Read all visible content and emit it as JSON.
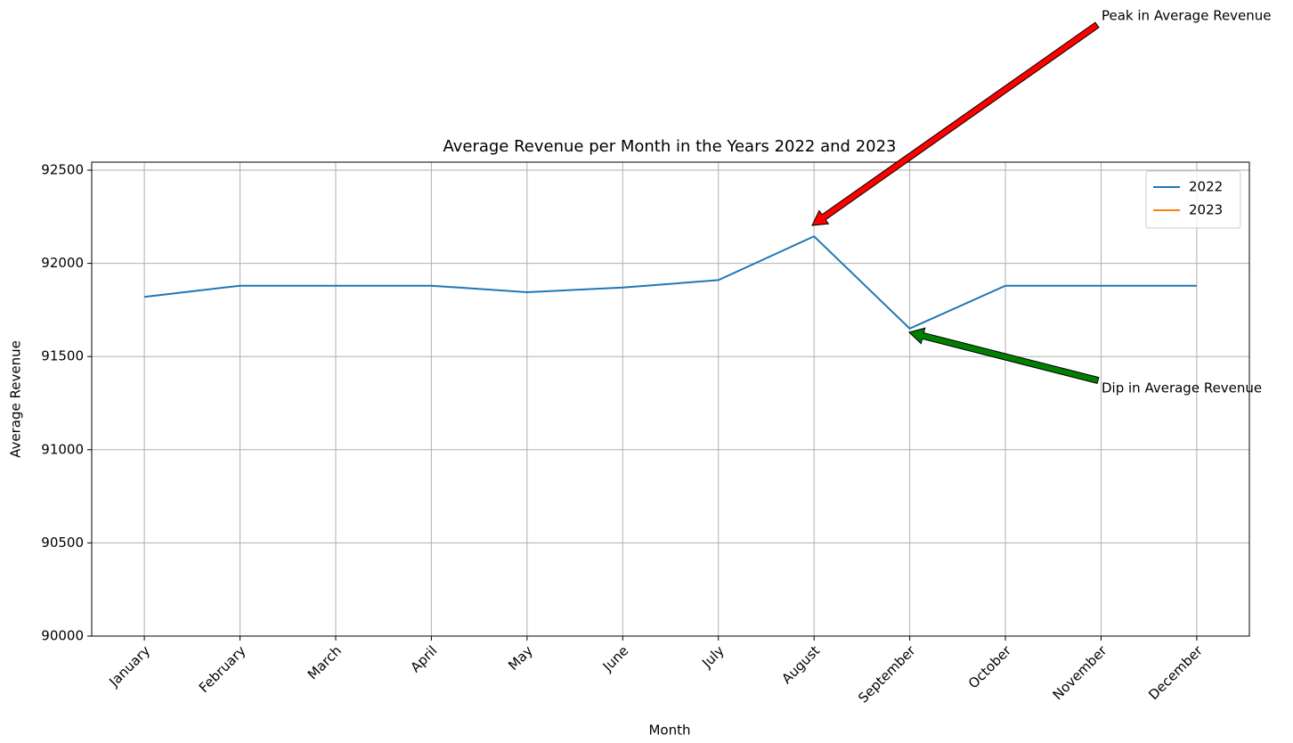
{
  "chart_data": {
    "type": "line",
    "title": "Average Revenue per Month in the Years 2022 and 2023",
    "x_label": "Month",
    "y_label": "Average Revenue",
    "categories": [
      "January",
      "February",
      "March",
      "April",
      "May",
      "June",
      "July",
      "August",
      "September",
      "October",
      "November",
      "December"
    ],
    "series": [
      {
        "name": "2022",
        "color": "#1f77b4",
        "values": [
          91820,
          91880,
          91880,
          91880,
          91845,
          91870,
          91910,
          92145,
          91650,
          91880,
          91880,
          91880
        ]
      },
      {
        "name": "2023",
        "color": "#ff7f0e",
        "values": [
          null,
          null,
          null,
          null,
          null,
          null,
          null,
          null,
          null,
          null,
          null,
          null
        ]
      }
    ],
    "ylim": [
      90000,
      92543
    ],
    "yticks": [
      90000,
      90500,
      91000,
      91500,
      92000,
      92500
    ],
    "grid": true,
    "legend": "upper right",
    "annotations": [
      {
        "text": "Peak in Average Revenue",
        "color": "#ff0000"
      },
      {
        "text": "Dip in Average Revenue",
        "color": "#008000"
      }
    ]
  }
}
